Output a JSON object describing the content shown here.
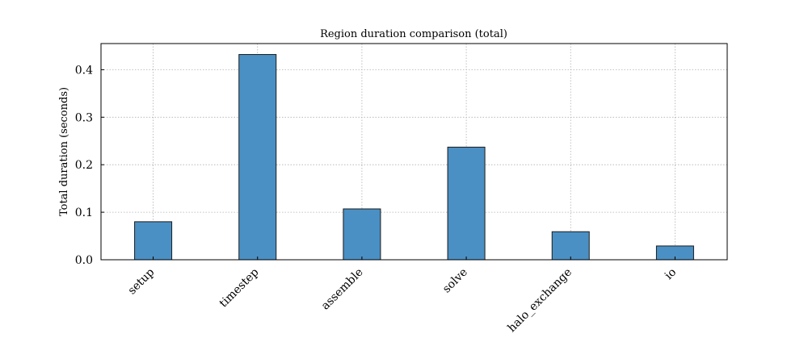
{
  "chart_data": {
    "type": "bar",
    "title": "Region duration comparison (total)",
    "xlabel": "",
    "ylabel": "Total duration (seconds)",
    "categories": [
      "setup",
      "timestep",
      "assemble",
      "solve",
      "halo_exchange",
      "io"
    ],
    "values": [
      0.08,
      0.432,
      0.107,
      0.237,
      0.059,
      0.029
    ],
    "ylim": [
      0,
      0.455
    ],
    "yticks": [
      0.0,
      0.1,
      0.2,
      0.3,
      0.4
    ],
    "ytick_labels": [
      "0.0",
      "0.1",
      "0.2",
      "0.3",
      "0.4"
    ],
    "grid": true,
    "bar_color": "#4a90c4",
    "edge_color": "#1a1a1a"
  }
}
